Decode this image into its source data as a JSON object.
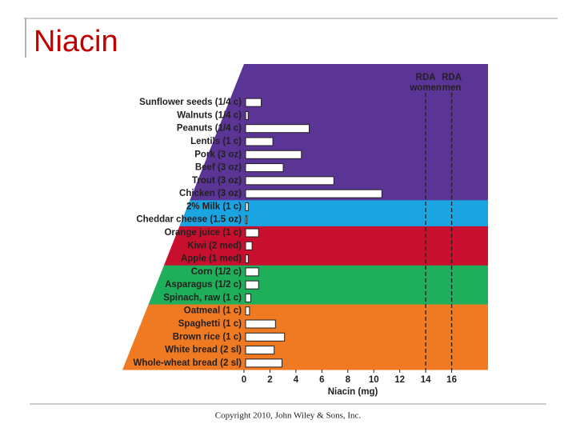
{
  "slide": {
    "title": "Niacin",
    "footer": "Copyright 2010, John Wiley & Sons, Inc."
  },
  "chart_data": {
    "type": "hbar",
    "categories": [
      "Sunflower seeds (1/4 c)",
      "Walnuts (1/4 c)",
      "Peanuts (1/4 c)",
      "Lentils (1 c)",
      "Pork (3 oz)",
      "Beef (3 oz)",
      "Trout (3 oz)",
      "Chicken (3 oz)",
      "2% Milk (1 c)",
      "Cheddar cheese (1.5 oz)",
      "Orange juice (1 c)",
      "Kiwi (2 med)",
      "Apple (1 med)",
      "Corn (1/2 c)",
      "Asparagus (1/2 c)",
      "Spinach, raw (1 c)",
      "Oatmeal (1 c)",
      "Spaghetti (1 c)",
      "Brown rice (1 c)",
      "White bread (2 sl)",
      "Whole-wheat bread (2 sl)"
    ],
    "values": [
      1.2,
      0.2,
      4.9,
      2.1,
      4.3,
      2.9,
      6.8,
      10.5,
      0.2,
      0.1,
      1.0,
      0.5,
      0.2,
      1.0,
      1.0,
      0.4,
      0.3,
      2.3,
      3.0,
      2.2,
      2.8
    ],
    "color": "#ffffff",
    "row_colors": [
      "#5b3595",
      "#5b3595",
      "#5b3595",
      "#5b3595",
      "#5b3595",
      "#5b3595",
      "#5b3595",
      "#5b3595",
      "#1aa4e2",
      "#1aa4e2",
      "#c8102e",
      "#c8102e",
      "#c8102e",
      "#1fae5a",
      "#1fae5a",
      "#1fae5a",
      "#f07a22",
      "#f07a22",
      "#f07a22",
      "#f07a22",
      "#f07a22"
    ],
    "xlim": [
      0,
      18.8
    ],
    "xticks": [
      0,
      2,
      4,
      6,
      8,
      10,
      12,
      14,
      16
    ],
    "x_label": "Niacin (mg)",
    "reference_lines": [
      {
        "value": 14,
        "label": [
          "RDA",
          "women"
        ]
      },
      {
        "value": 16,
        "label": [
          "RDA",
          "men"
        ]
      }
    ]
  }
}
